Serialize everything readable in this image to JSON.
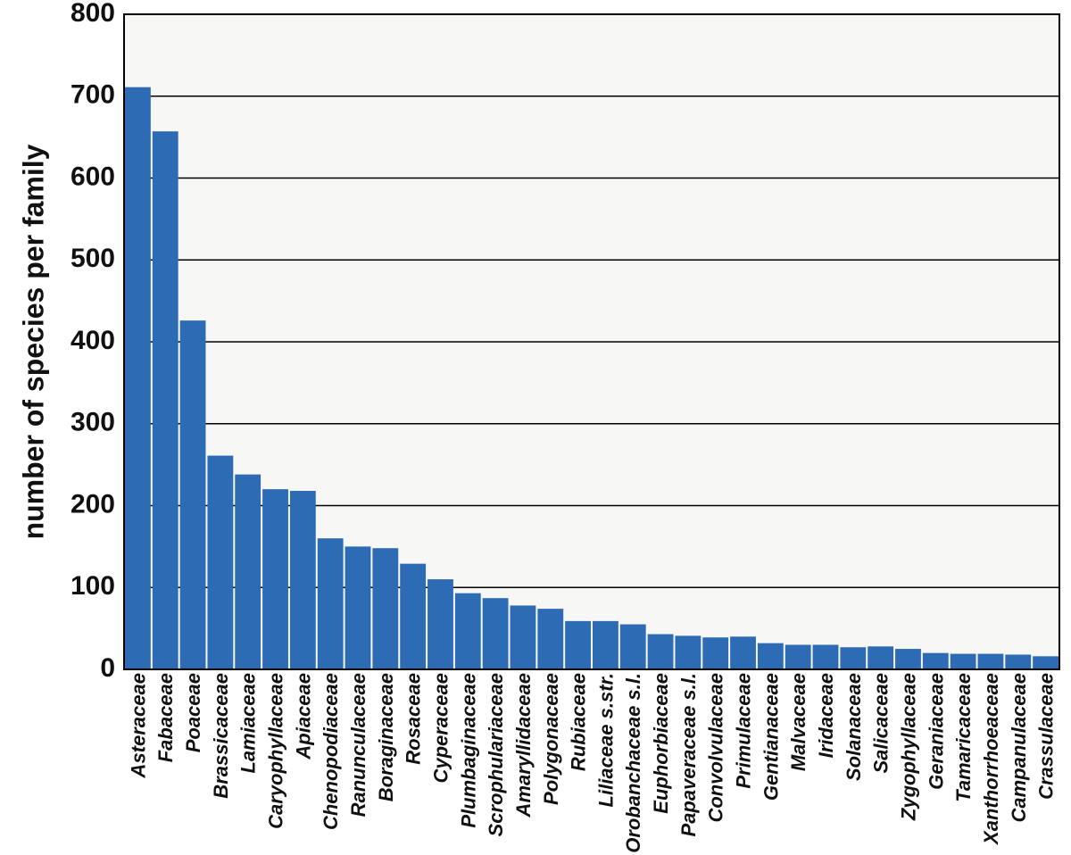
{
  "chart_data": {
    "type": "bar",
    "title": "",
    "xlabel": "",
    "ylabel": "number of species per family",
    "ylim": [
      0,
      800
    ],
    "yticks": [
      0,
      100,
      200,
      300,
      400,
      500,
      600,
      700,
      800
    ],
    "grid": "horizontal",
    "colors": {
      "bar": "#2e6bb5",
      "plot_background": "#f7f7f5",
      "grid": "#000000"
    },
    "categories": [
      "Asteraceae",
      "Fabaceae",
      "Poaceae",
      "Brassicaceae",
      "Lamiaceae",
      "Caryophyllaceae",
      "Apiaceae",
      "Chenopodiaceae",
      "Ranunculaceae",
      "Boraginaceae",
      "Rosaceae",
      "Cyperaceae",
      "Plumbaginaceae",
      "Scrophulariaceae",
      "Amaryllidaceae",
      "Polygonaceae",
      "Rubiaceae",
      "Liliaceae s.str.",
      "Orobanchaceae s.l.",
      "Euphorbiaceae",
      "Papaveraceae s.l.",
      "Convolvulaceae",
      "Primulaceae",
      "Gentianaceae",
      "Malvaceae",
      "Iridaceae",
      "Solanaceae",
      "Salicaceae",
      "Zygophyllaceae",
      "Geraniaceae",
      "Tamaricaceae",
      "Xanthorrhoeaceae",
      "Campanulaceae",
      "Crassulaceae"
    ],
    "values": [
      711,
      657,
      426,
      261,
      238,
      220,
      218,
      160,
      150,
      148,
      129,
      110,
      93,
      87,
      78,
      74,
      59,
      59,
      55,
      43,
      41,
      39,
      40,
      32,
      30,
      30,
      27,
      28,
      25,
      20,
      19,
      19,
      18,
      16
    ]
  }
}
